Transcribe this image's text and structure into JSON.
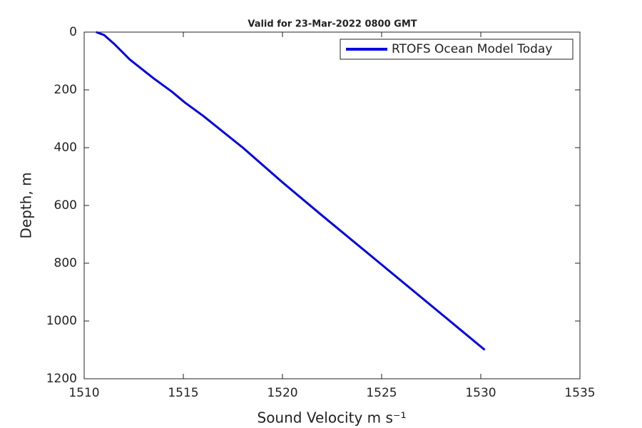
{
  "chart_data": {
    "type": "line",
    "title": "Valid for 23-Mar-2022 0800 GMT",
    "x_label": "Sound Velocity m s⁻¹",
    "y_label": "Depth, m",
    "x": [
      1510.6,
      1511,
      1511.5,
      1512.3,
      1513.5,
      1514.4,
      1515.1,
      1516,
      1518,
      1520,
      1522,
      1525,
      1528,
      1530.2
    ],
    "series": [
      {
        "name": "RTOFS Ocean Model Today",
        "color": "#0000e0",
        "values": [
          0,
          10,
          40,
          95,
          160,
          205,
          245,
          290,
          400,
          520,
          635,
          805,
          975,
          1100
        ]
      }
    ],
    "xlim": [
      1510,
      1535
    ],
    "xticks": [
      1510,
      1515,
      1520,
      1525,
      1530,
      1535
    ],
    "ylim": [
      0,
      1200
    ],
    "yticks": [
      0,
      200,
      400,
      600,
      800,
      1000,
      1200
    ],
    "y_reversed": true,
    "grid": false,
    "legend": "top-right"
  }
}
